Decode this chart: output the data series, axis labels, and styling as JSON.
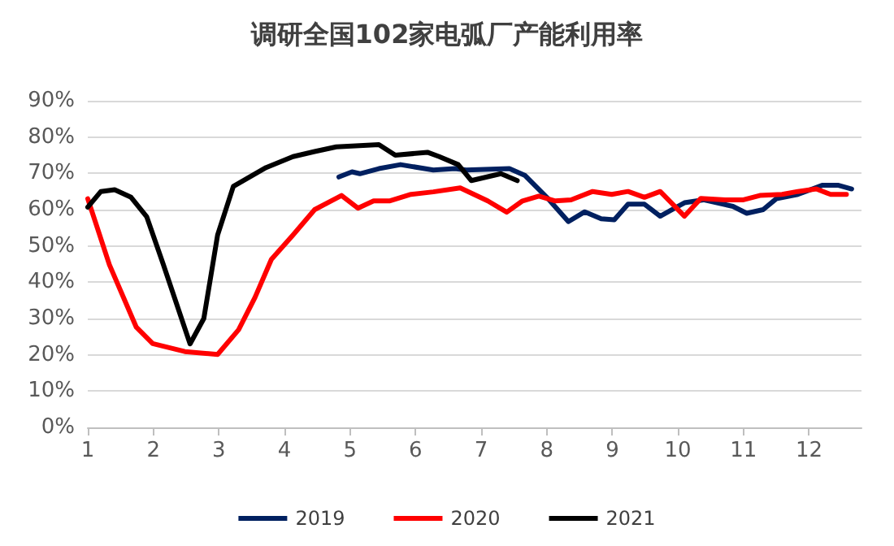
{
  "chart_data": {
    "type": "line",
    "title": "调研全国102家电弧厂产能利用率",
    "xlim": [
      1,
      12.8
    ],
    "xticks": [
      1,
      2,
      3,
      4,
      5,
      6,
      7,
      8,
      9,
      10,
      11,
      12
    ],
    "ylim": [
      0,
      90
    ],
    "yticks": [
      {
        "value": 0,
        "label": "0%"
      },
      {
        "value": 10,
        "label": "10%"
      },
      {
        "value": 20,
        "label": "20%"
      },
      {
        "value": 30,
        "label": "30%"
      },
      {
        "value": 40,
        "label": "40%"
      },
      {
        "value": 50,
        "label": "50%"
      },
      {
        "value": 60,
        "label": "60%"
      },
      {
        "value": 70,
        "label": "70%"
      },
      {
        "value": 80,
        "label": "80%"
      },
      {
        "value": 90,
        "label": "90%"
      }
    ],
    "grid": "y",
    "legend": "bottom",
    "marker": "none",
    "line_style": "solid",
    "series": [
      {
        "name": "2019",
        "color": "#002060",
        "x": [
          4.83,
          5.03,
          5.15,
          5.44,
          5.77,
          6.27,
          6.6,
          6.77,
          7.43,
          7.67,
          8.0,
          8.33,
          8.58,
          8.83,
          9.03,
          9.24,
          9.49,
          9.73,
          10.1,
          10.39,
          10.84,
          11.05,
          11.3,
          11.5,
          11.83,
          12.2,
          12.45,
          12.65
        ],
        "values": [
          69,
          70.4,
          69.9,
          71.3,
          72.4,
          70.9,
          71.3,
          70.9,
          71.3,
          69.4,
          63.4,
          56.7,
          59.4,
          57.5,
          57.2,
          61.5,
          61.5,
          58.2,
          61.9,
          62.7,
          60.9,
          59,
          60,
          63,
          64.2,
          66.7,
          66.7,
          65.7
        ]
      },
      {
        "name": "2020",
        "color": "#ff0000",
        "x": [
          1,
          1.33,
          1.74,
          1.99,
          2.48,
          2.98,
          3.3,
          3.55,
          3.8,
          4.13,
          4.46,
          4.87,
          5.12,
          5.36,
          5.6,
          5.93,
          6.27,
          6.68,
          7.1,
          7.39,
          7.63,
          7.88,
          8.13,
          8.37,
          8.7,
          8.99,
          9.24,
          9.49,
          9.73,
          10.1,
          10.35,
          10.72,
          11.0,
          11.25,
          11.59,
          11.83,
          12.11,
          12.33,
          12.57
        ],
        "values": [
          63,
          44.8,
          27.6,
          23.1,
          20.9,
          20.1,
          26.9,
          35.8,
          46.3,
          53,
          60,
          63.9,
          60.4,
          62.4,
          62.4,
          64.2,
          64.9,
          66,
          62.4,
          59.3,
          62.4,
          63.7,
          62.4,
          62.7,
          65,
          64.2,
          65,
          63.4,
          65,
          58.2,
          63.1,
          62.7,
          62.7,
          63.9,
          64.2,
          65,
          65.7,
          64.2,
          64.2
        ]
      },
      {
        "name": "2021",
        "color": "#000000",
        "x": [
          1,
          1.2,
          1.41,
          1.66,
          1.9,
          2.15,
          2.56,
          2.77,
          2.98,
          3.22,
          3.72,
          4.13,
          4.46,
          4.79,
          5.44,
          5.69,
          6.18,
          6.36,
          6.65,
          6.85,
          7.3,
          7.55
        ],
        "values": [
          60.7,
          65,
          65.5,
          63.4,
          58,
          45,
          23,
          30,
          53,
          66.4,
          71.6,
          74.6,
          76,
          77.3,
          77.9,
          75,
          75.8,
          74.6,
          72.4,
          68,
          69.9,
          68
        ]
      }
    ]
  }
}
